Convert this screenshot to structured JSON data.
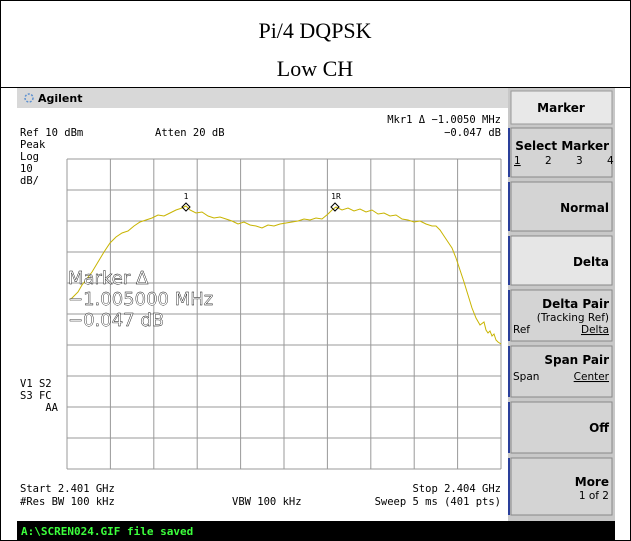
{
  "header": {
    "title": "Pi/4 DQPSK",
    "subtitle": "Low CH"
  },
  "screen": {
    "brand": "Agilent",
    "marker_delta": "Mkr1 Δ  −1.0050 MHz",
    "marker_delta_db": "−0.047 dB",
    "ref_level": "Ref 10 dBm",
    "attenuation": "Atten 20 dB",
    "detector": [
      "Peak",
      "Log",
      "10",
      "dB/"
    ],
    "status_flags": [
      "V1  S2",
      "S3  FC",
      "AA"
    ],
    "marker_readout": [
      "Marker Δ",
      "−1.005000 MHz",
      "−0.047 dB"
    ],
    "marker_labels": [
      "1",
      "1R"
    ],
    "start": "Start 2.401 GHz",
    "stop": "Stop 2.404 GHz",
    "res_bw": "#Res BW 100 kHz",
    "vbw": "VBW 100 kHz",
    "sweep": "Sweep 5 ms (401 pts)",
    "status_message": "A:\\SCREN024.GIF file saved"
  },
  "softkeys": {
    "menu_title": "Marker",
    "keys": [
      {
        "label": "Select Marker",
        "options": [
          "1",
          "2",
          "3",
          "4"
        ]
      },
      {
        "label": "Normal"
      },
      {
        "label": "Delta"
      },
      {
        "label": "Delta Pair",
        "note": "(Tracking Ref)",
        "options": [
          "Ref",
          "Delta"
        ]
      },
      {
        "label": "Span Pair",
        "options": [
          "Span",
          "Center"
        ]
      },
      {
        "label": "Off"
      },
      {
        "label": "More",
        "note": "1 of 2"
      }
    ]
  }
}
